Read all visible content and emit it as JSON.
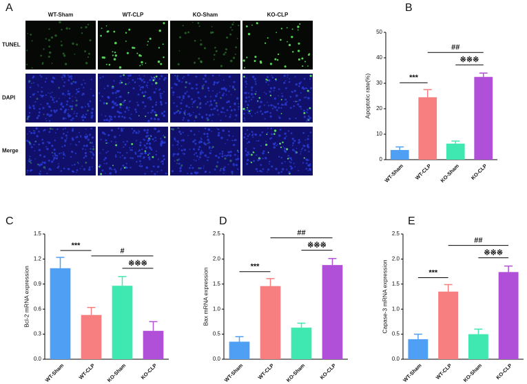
{
  "image_panel": {
    "letter": "A",
    "columns": [
      "WT-Sham",
      "WT-CLP",
      "KO-Sham",
      "KO-CLP"
    ],
    "rows": [
      "TUNEL",
      "DAPI",
      "Merge"
    ]
  },
  "chart_data": [
    {
      "type": "bar",
      "letter": "B",
      "y_label": "Apoptotic rate(%)",
      "categories": [
        "WT-Sham",
        "WT-CLP",
        "KO-Sham",
        "KO-CLP"
      ],
      "values": [
        3.8,
        24.5,
        6.3,
        32.5
      ],
      "errors": [
        1.2,
        3,
        1,
        1.5
      ],
      "colors": [
        "#4f9ff5",
        "#f87f7f",
        "#3fe8b0",
        "#b04fd8"
      ],
      "ylim": [
        0,
        50
      ],
      "yticks": [
        0,
        10,
        20,
        30,
        40,
        50
      ],
      "annotations": [
        "***",
        "##",
        "※※※"
      ]
    },
    {
      "type": "bar",
      "letter": "C",
      "y_label": "Bcl-2 mRNA expression",
      "categories": [
        "WT-Sham",
        "WT-CLP",
        "KO-Sham",
        "KO-CLP"
      ],
      "values": [
        1.09,
        0.53,
        0.88,
        0.34
      ],
      "errors": [
        0.13,
        0.09,
        0.11,
        0.11
      ],
      "colors": [
        "#4f9ff5",
        "#f87f7f",
        "#3fe8b0",
        "#b04fd8"
      ],
      "ylim": [
        0,
        1.5
      ],
      "yticks": [
        {
          "value": 0,
          "label": "0.0"
        },
        0.3,
        0.6,
        0.9,
        1.2,
        1.5
      ],
      "annotations": [
        "***",
        "#",
        "※※※"
      ]
    },
    {
      "type": "bar",
      "letter": "D",
      "y_label": "Bax mRNA expression",
      "categories": [
        "WT-Sham",
        "WT-CLP",
        "KO-Sham",
        "KO-CLP"
      ],
      "values": [
        0.35,
        1.46,
        0.63,
        1.88
      ],
      "errors": [
        0.1,
        0.15,
        0.09,
        0.13
      ],
      "colors": [
        "#4f9ff5",
        "#f87f7f",
        "#3fe8b0",
        "#b04fd8"
      ],
      "ylim": [
        0,
        2.5
      ],
      "yticks": [
        {
          "value": 0,
          "label": "0.0"
        },
        0.5,
        {
          "value": 1,
          "label": "1.0"
        },
        1.5,
        {
          "value": 2,
          "label": "2.0"
        },
        2.5
      ],
      "annotations": [
        "***",
        "##",
        "※※※"
      ]
    },
    {
      "type": "bar",
      "letter": "E",
      "y_label": "Capase-3 mRNA expression",
      "categories": [
        "WT-Sham",
        "WT-CLP",
        "KO-Sham",
        "KO-CLP"
      ],
      "values": [
        0.4,
        1.35,
        0.5,
        1.74
      ],
      "errors": [
        0.1,
        0.14,
        0.1,
        0.12
      ],
      "colors": [
        "#4f9ff5",
        "#f87f7f",
        "#3fe8b0",
        "#b04fd8"
      ],
      "ylim": [
        0,
        2.5
      ],
      "yticks": [
        {
          "value": 0,
          "label": "0.0"
        },
        0.5,
        {
          "value": 1,
          "label": "1.0"
        },
        1.5,
        {
          "value": 2,
          "label": "2.0"
        },
        2.5
      ],
      "annotations": [
        "***",
        "##",
        "※※※"
      ]
    }
  ]
}
